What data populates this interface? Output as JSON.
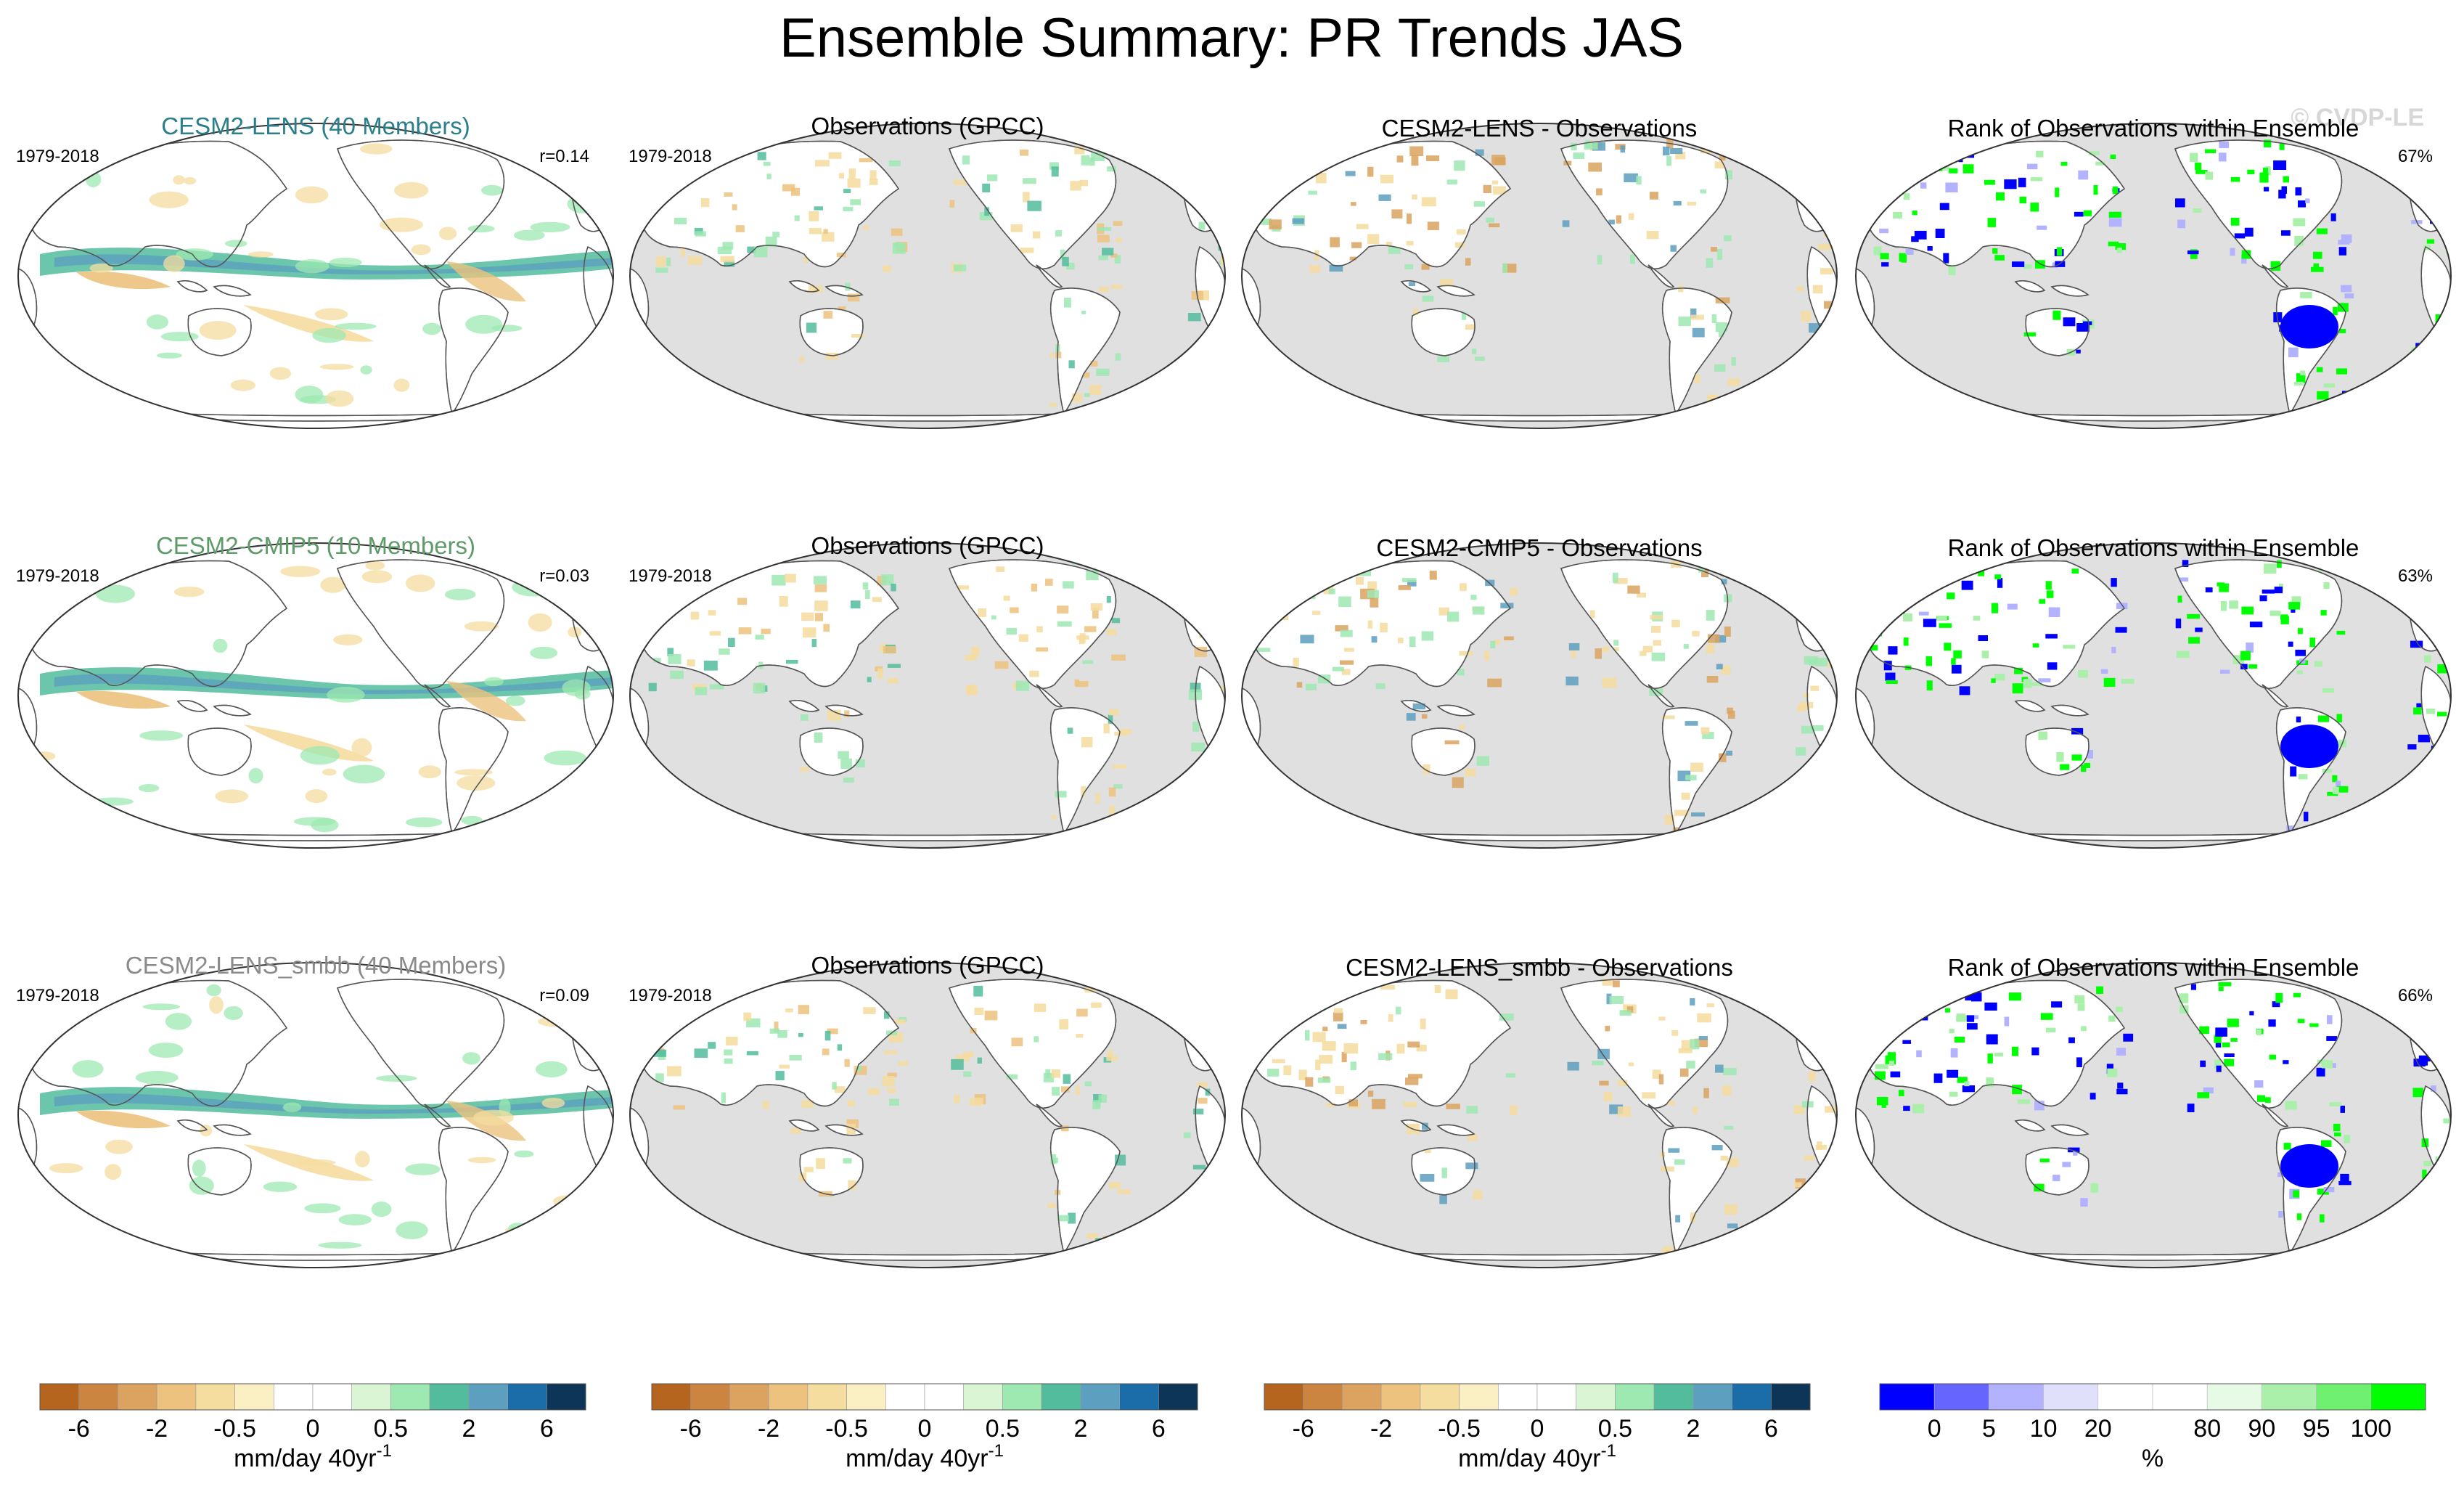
{
  "figure": {
    "title": "Ensemble Summary: PR Trends JAS",
    "watermark": "© CVDP-LE"
  },
  "colors": {
    "model_title_colors": [
      "#2a7f8a",
      "#5e9a6a",
      "#8a8a8a"
    ],
    "ocean_gray": "#e0e0e0",
    "land_gray": "#bdbdbd",
    "precip_palette": [
      "#b5651d",
      "#cc8540",
      "#dba35f",
      "#ecc27e",
      "#f5dc9f",
      "#fbf0c3",
      "#ffffff",
      "#ffffff",
      "#d9f5d3",
      "#9ee8b2",
      "#52bc9c",
      "#5d9fbf",
      "#1a6da8",
      "#0c3558"
    ],
    "rank_palette": [
      "#0000ff",
      "#6666ff",
      "#b2b2ff",
      "#e0e0fa",
      "#ffffff",
      "#ffffff",
      "#e6fae6",
      "#aaf0aa",
      "#70f070",
      "#00ff00"
    ]
  },
  "chart_data": {
    "type": "map-panel-grid",
    "rows": [
      {
        "model": "CESM2-LENS (40 Members)",
        "period": "1979-2018",
        "r": "r=0.14",
        "obs_title": "Observations (GPCC)",
        "obs_period": "1979-2018",
        "diff_title": "CESM2-LENS - Observations",
        "rank_title": "Rank of Observations within Ensemble",
        "rank_pct": "67%",
        "rank_pct_value": 67
      },
      {
        "model": "CESM2-CMIP5 (10 Members)",
        "period": "1979-2018",
        "r": "r=0.03",
        "obs_title": "Observations (GPCC)",
        "obs_period": "1979-2018",
        "diff_title": "CESM2-CMIP5 - Observations",
        "rank_title": "Rank of Observations within Ensemble",
        "rank_pct": "63%",
        "rank_pct_value": 63
      },
      {
        "model": "CESM2-LENS_smbb (40 Members)",
        "period": "1979-2018",
        "r": "r=0.09",
        "obs_title": "Observations (GPCC)",
        "obs_period": "1979-2018",
        "diff_title": "CESM2-LENS_smbb - Observations",
        "rank_title": "Rank of Observations within Ensemble",
        "rank_pct": "66%",
        "rank_pct_value": 66
      }
    ],
    "colorbar_precip": {
      "ticks": [
        "-6",
        "-2",
        "-0.5",
        "0",
        "0.5",
        "2",
        "6"
      ],
      "unit": "mm/day 40yr",
      "unit_sup": "-1",
      "levels": [
        -8,
        -6,
        -4,
        -2,
        -1,
        -0.5,
        -0.2,
        0,
        0.2,
        0.5,
        1,
        2,
        4,
        6,
        8
      ]
    },
    "colorbar_rank": {
      "ticks": [
        "0",
        "5",
        "10",
        "20",
        "80",
        "90",
        "95",
        "100"
      ],
      "unit": "%"
    }
  }
}
